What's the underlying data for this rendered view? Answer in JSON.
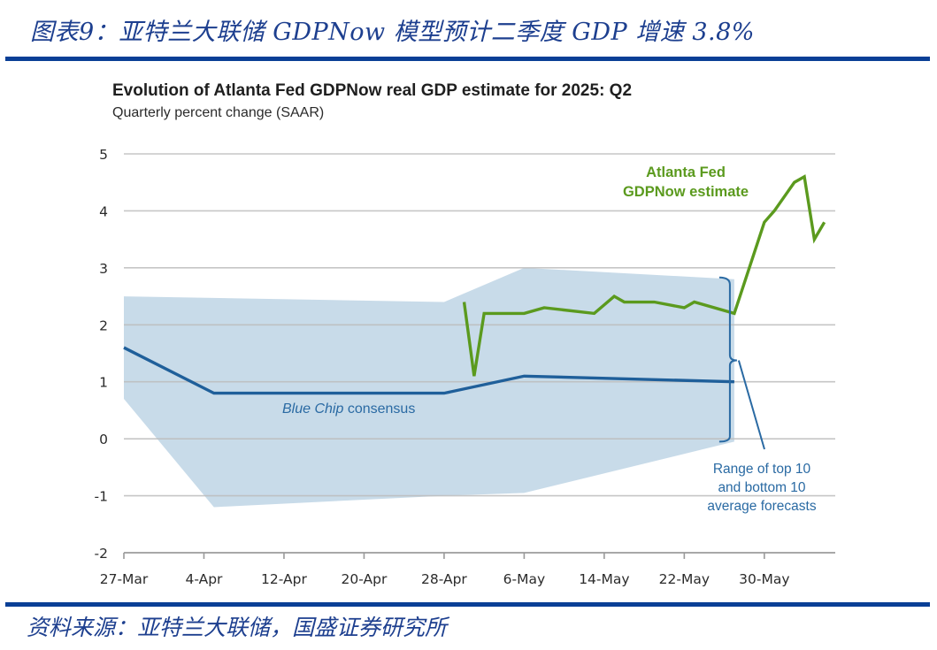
{
  "figure": {
    "title": "图表9：亚特兰大联储 GDPNow 模型预计二季度 GDP 增速 3.8%",
    "source": "资料来源：亚特兰大联储，国盛证券研究所"
  },
  "colors": {
    "rule": "#0a3f96",
    "green_line": "#5b9a1e",
    "blue_line": "#1f5f9a",
    "band": "#c5d9e8",
    "grid": "#bdbdbd"
  },
  "chart_data": {
    "type": "line",
    "title": "Evolution of Atlanta Fed GDPNow real GDP estimate for 2025: Q2",
    "subtitle": "Quarterly percent change (SAAR)",
    "xlabel": "",
    "ylabel": "",
    "ylim": [
      -2,
      5
    ],
    "yticks": [
      5,
      4,
      3,
      2,
      1,
      0,
      -1,
      -2
    ],
    "ytick_labels": [
      "5",
      "4",
      "3",
      "2",
      "1",
      "0",
      "-1",
      "-2"
    ],
    "x_unit": "days since 27-Mar",
    "xlim": [
      0,
      72
    ],
    "xticks": [
      0,
      8,
      16,
      24,
      32,
      40,
      48,
      56,
      64
    ],
    "xtick_labels": [
      "27-Mar",
      "4-Apr",
      "12-Apr",
      "20-Apr",
      "28-Apr",
      "6-May",
      "14-May",
      "22-May",
      "30-May"
    ],
    "grid": true,
    "series": [
      {
        "name": "Atlanta Fed GDPNow estimate",
        "label_lines": [
          "Atlanta Fed",
          "GDPNow estimate"
        ],
        "x": [
          34,
          35,
          36,
          40,
          42,
          47,
          49,
          50,
          53,
          56,
          57,
          61,
          64,
          65,
          67,
          68,
          69,
          70
        ],
        "values": [
          2.4,
          1.1,
          2.2,
          2.2,
          2.3,
          2.2,
          2.5,
          2.4,
          2.4,
          2.3,
          2.4,
          2.2,
          3.8,
          4.0,
          4.5,
          4.6,
          3.5,
          3.8
        ]
      },
      {
        "name": "Blue Chip consensus",
        "label_italic": "Blue Chip",
        "label_rest": " consensus",
        "x": [
          0,
          9,
          32,
          40,
          61
        ],
        "values": [
          1.6,
          0.8,
          0.8,
          1.1,
          1.0
        ]
      }
    ],
    "band": {
      "name": "Range of top 10 and bottom 10 average forecasts",
      "label_lines": [
        "Range of top 10",
        "and bottom 10",
        "average forecasts"
      ],
      "upper": {
        "x": [
          0,
          32,
          40,
          61
        ],
        "values": [
          2.5,
          2.4,
          3.0,
          2.8
        ]
      },
      "lower": {
        "x": [
          0,
          9,
          32,
          40,
          61
        ],
        "values": [
          0.7,
          -1.2,
          -1.0,
          -0.95,
          -0.05
        ]
      }
    }
  }
}
